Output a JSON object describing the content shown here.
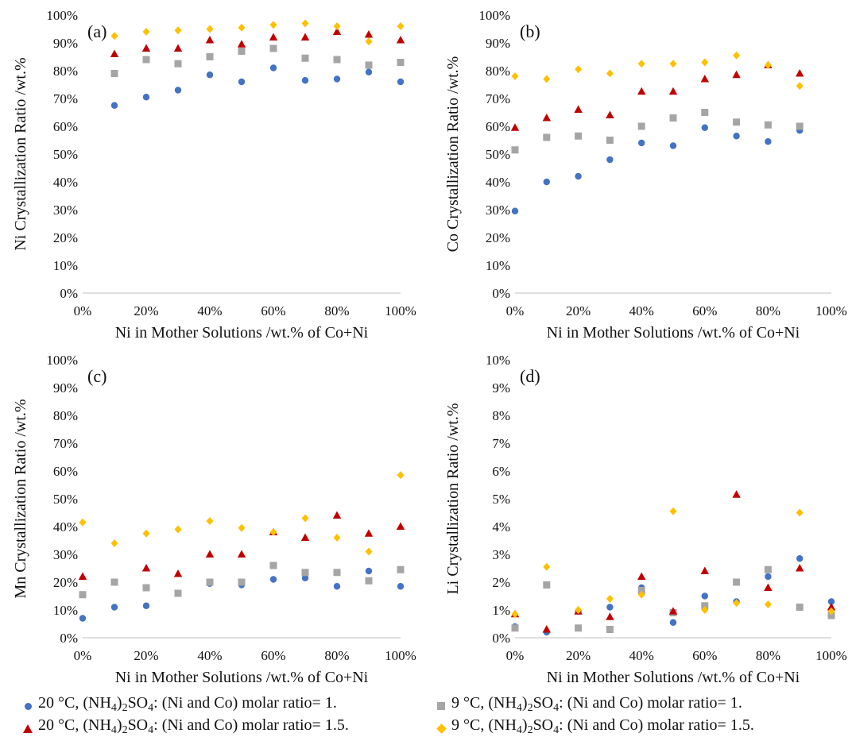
{
  "series_styles": [
    {
      "key": "s1",
      "marker": "circle",
      "color": "#4472c4"
    },
    {
      "key": "s2",
      "marker": "square",
      "color": "#a5a5a5"
    },
    {
      "key": "s3",
      "marker": "triangle",
      "color": "#c00000"
    },
    {
      "key": "s4",
      "marker": "diamond",
      "color": "#ffc000"
    }
  ],
  "legend": [
    {
      "key": "s1",
      "parts": [
        "20 °C, (NH",
        "4",
        ")",
        "2",
        "SO",
        "4",
        ": (Ni and Co) molar ratio= 1."
      ]
    },
    {
      "key": "s2",
      "parts": [
        "9 °C, (NH",
        "4",
        ")",
        "2",
        "SO",
        "4",
        ": (Ni and Co) molar ratio= 1."
      ]
    },
    {
      "key": "s3",
      "parts": [
        "20 °C, (NH",
        "4",
        ")",
        "2",
        "SO",
        "4",
        ": (Ni and Co) molar ratio= 1.5."
      ]
    },
    {
      "key": "s4",
      "parts": [
        "9 °C, (NH",
        "4",
        ")",
        "2",
        "SO",
        "4",
        ": (Ni and Co) molar ratio= 1.5."
      ]
    }
  ],
  "chart_data": [
    {
      "type": "scatter",
      "panel_label": "(a)",
      "xlabel": "Ni in Mother Solutions /wt.% of Co+Ni",
      "ylabel": "Ni Crystallization Ratio /wt.%",
      "xlim": [
        0,
        100
      ],
      "ylim": [
        0,
        100
      ],
      "xticks": [
        "0%",
        "20%",
        "40%",
        "60%",
        "80%",
        "100%"
      ],
      "yticks": [
        "0%",
        "10%",
        "20%",
        "30%",
        "40%",
        "50%",
        "60%",
        "70%",
        "80%",
        "90%",
        "100%"
      ],
      "x": [
        10,
        20,
        30,
        40,
        50,
        60,
        70,
        80,
        90,
        100
      ],
      "series": [
        {
          "key": "s1",
          "values": [
            67.5,
            70.5,
            73,
            78.5,
            76,
            81,
            76.5,
            77,
            79.5,
            76
          ]
        },
        {
          "key": "s2",
          "values": [
            79,
            84,
            82.5,
            85,
            87,
            88,
            84.5,
            84,
            82,
            83
          ]
        },
        {
          "key": "s3",
          "values": [
            86,
            88,
            88,
            91,
            89.5,
            92,
            92,
            94,
            93,
            91
          ]
        },
        {
          "key": "s4",
          "values": [
            92.5,
            94,
            94.5,
            95,
            95.5,
            96.5,
            97,
            96,
            90.5,
            96
          ]
        }
      ]
    },
    {
      "type": "scatter",
      "panel_label": "(b)",
      "xlabel": "Ni in Mother Solutions /wt.% of Co+Ni",
      "ylabel": "Co Crystallization Ratio /wt.%",
      "xlim": [
        0,
        100
      ],
      "ylim": [
        0,
        100
      ],
      "xticks": [
        "0%",
        "20%",
        "40%",
        "60%",
        "80%",
        "100%"
      ],
      "yticks": [
        "0%",
        "10%",
        "20%",
        "30%",
        "40%",
        "50%",
        "60%",
        "70%",
        "80%",
        "90%",
        "100%"
      ],
      "x": [
        0,
        10,
        20,
        30,
        40,
        50,
        60,
        70,
        80,
        90
      ],
      "series": [
        {
          "key": "s1",
          "values": [
            29.5,
            40,
            42,
            48,
            54,
            53,
            59.5,
            56.5,
            54.5,
            58.5
          ]
        },
        {
          "key": "s2",
          "values": [
            51.5,
            56,
            56.5,
            55,
            60,
            63,
            65,
            61.5,
            60.5,
            60
          ]
        },
        {
          "key": "s3",
          "values": [
            59.5,
            63,
            66,
            64,
            72.5,
            72.5,
            77,
            78.5,
            82,
            79
          ]
        },
        {
          "key": "s4",
          "values": [
            78,
            77,
            80.5,
            79,
            82.5,
            82.5,
            83,
            85.5,
            82,
            74.5
          ]
        }
      ]
    },
    {
      "type": "scatter",
      "panel_label": "(c)",
      "xlabel": "Ni in Mother Solutions /wt.% of Co+Ni",
      "ylabel": "Mn Crystallization Ratio /wt.%",
      "xlim": [
        0,
        100
      ],
      "ylim": [
        0,
        100
      ],
      "xticks": [
        "0%",
        "20%",
        "40%",
        "60%",
        "80%",
        "100%"
      ],
      "yticks": [
        "0%",
        "10%",
        "20%",
        "30%",
        "40%",
        "50%",
        "60%",
        "70%",
        "80%",
        "90%",
        "100%"
      ],
      "x": [
        0,
        10,
        20,
        30,
        40,
        50,
        60,
        70,
        80,
        90,
        100
      ],
      "series": [
        {
          "key": "s1",
          "values": [
            7,
            11,
            11.5,
            16,
            19.5,
            19,
            21,
            21.5,
            18.5,
            24,
            18.5
          ]
        },
        {
          "key": "s2",
          "values": [
            15.5,
            20,
            18,
            16,
            20,
            20,
            26,
            23.5,
            23.5,
            20.5,
            24.5
          ]
        },
        {
          "key": "s3",
          "values": [
            22,
            null,
            25,
            23,
            30,
            30,
            38,
            36,
            44,
            37.5,
            40
          ]
        },
        {
          "key": "s4",
          "values": [
            41.5,
            34,
            37.5,
            39,
            42,
            39.5,
            38,
            43,
            36,
            31,
            58.5
          ]
        }
      ]
    },
    {
      "type": "scatter",
      "panel_label": "(d)",
      "xlabel": "Ni in Mother Solutions /wt.% of Co+Ni",
      "ylabel": "Li Crystallization Ratio /wt.%",
      "xlim": [
        0,
        100
      ],
      "ylim": [
        0,
        10
      ],
      "xticks": [
        "0%",
        "20%",
        "40%",
        "60%",
        "80%",
        "100%"
      ],
      "yticks": [
        "0%",
        "1%",
        "2%",
        "3%",
        "4%",
        "5%",
        "6%",
        "7%",
        "8%",
        "9%",
        "10%"
      ],
      "x": [
        0,
        10,
        20,
        30,
        40,
        50,
        60,
        70,
        80,
        90,
        100
      ],
      "series": [
        {
          "key": "s1",
          "values": [
            0.4,
            0.2,
            0.95,
            1.1,
            1.8,
            0.55,
            1.5,
            1.3,
            2.2,
            2.85,
            1.3
          ]
        },
        {
          "key": "s2",
          "values": [
            0.35,
            1.9,
            0.35,
            0.3,
            1.7,
            0.9,
            1.15,
            2.0,
            2.45,
            1.1,
            0.8
          ]
        },
        {
          "key": "s3",
          "values": [
            0.85,
            0.3,
            0.95,
            0.75,
            2.2,
            0.95,
            2.4,
            5.15,
            1.8,
            2.5,
            1.1
          ]
        },
        {
          "key": "s4",
          "values": [
            0.85,
            2.55,
            1.0,
            1.4,
            1.55,
            4.55,
            1.0,
            1.25,
            1.2,
            4.5,
            0.95
          ]
        }
      ]
    }
  ]
}
